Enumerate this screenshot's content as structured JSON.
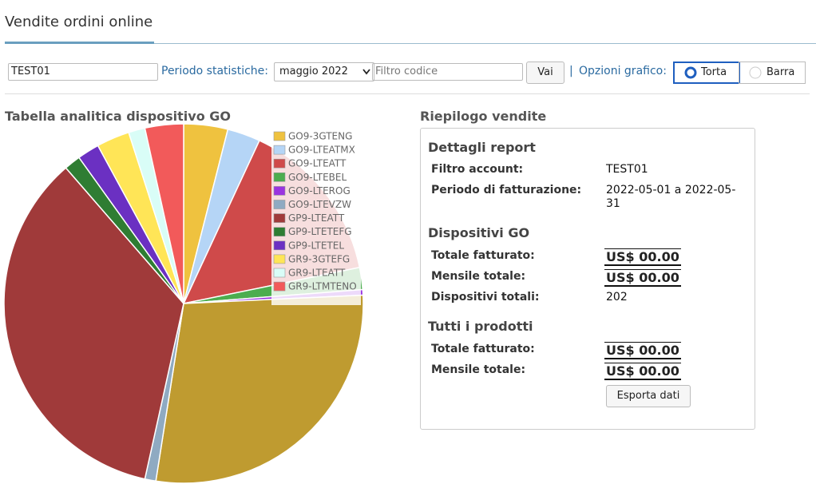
{
  "header": {
    "title": "Vendite ordini online"
  },
  "toolbar": {
    "account": "TEST01",
    "period_label": "Periodo statistiche:",
    "period_value": "maggio 2022",
    "filter_placeholder": "Filtro codice",
    "button": "Vai",
    "separator": "|",
    "chart_options_label": "Opzioni grafico:",
    "options": [
      "Torta",
      "Barra"
    ]
  },
  "chart_data": {
    "type": "pie",
    "title": "Tabella analitica dispositivo GO",
    "categories": [
      "GO9-3GTENG",
      "GO9-LTEATMX",
      "GO9-LTEATT",
      "GO9-LTEBEL",
      "GO9-LTEROG",
      null,
      "GO9-LTEVZW",
      "GP9-LTEATT",
      "GP9-LTETEFG",
      "GP9-LTETEL",
      "GR9-3GTEFG",
      "GR9-LTEATT",
      "GR9-LTMTENO"
    ],
    "values": [
      8,
      6,
      30,
      4,
      1,
      57,
      2,
      71,
      3,
      4,
      6,
      3,
      7
    ],
    "colors": [
      "#efc23f",
      "#b5d5f6",
      "#cf4a4a",
      "#4cad4f",
      "#9a34e0",
      "#8faac2",
      "#a03a3a",
      "#2f7d33",
      "#6b30c2",
      "#ffe557",
      "#d9fdf7",
      "#f25a5a",
      "#bf9b30"
    ]
  },
  "summary": {
    "title": "Riepilogo vendite",
    "report": {
      "title": "Dettagli report",
      "rows": [
        [
          "Filtro account:",
          "TEST01"
        ],
        [
          "Periodo di fatturazione:",
          "2022-05-01 a 2022-05-31"
        ]
      ]
    },
    "devices": {
      "title": "Dispositivi GO",
      "rows": [
        [
          "Totale fatturato:",
          "US$ 00.00"
        ],
        [
          "Mensile totale:",
          "US$ 00.00"
        ],
        [
          "Dispositivi totali:",
          "202"
        ]
      ]
    },
    "all": {
      "title": "Tutti i prodotti",
      "rows": [
        [
          "Totale fatturato:",
          "US$ 00.00"
        ],
        [
          "Mensile totale:",
          "US$ 00.00"
        ]
      ]
    },
    "export_button": "Esporta dati"
  }
}
